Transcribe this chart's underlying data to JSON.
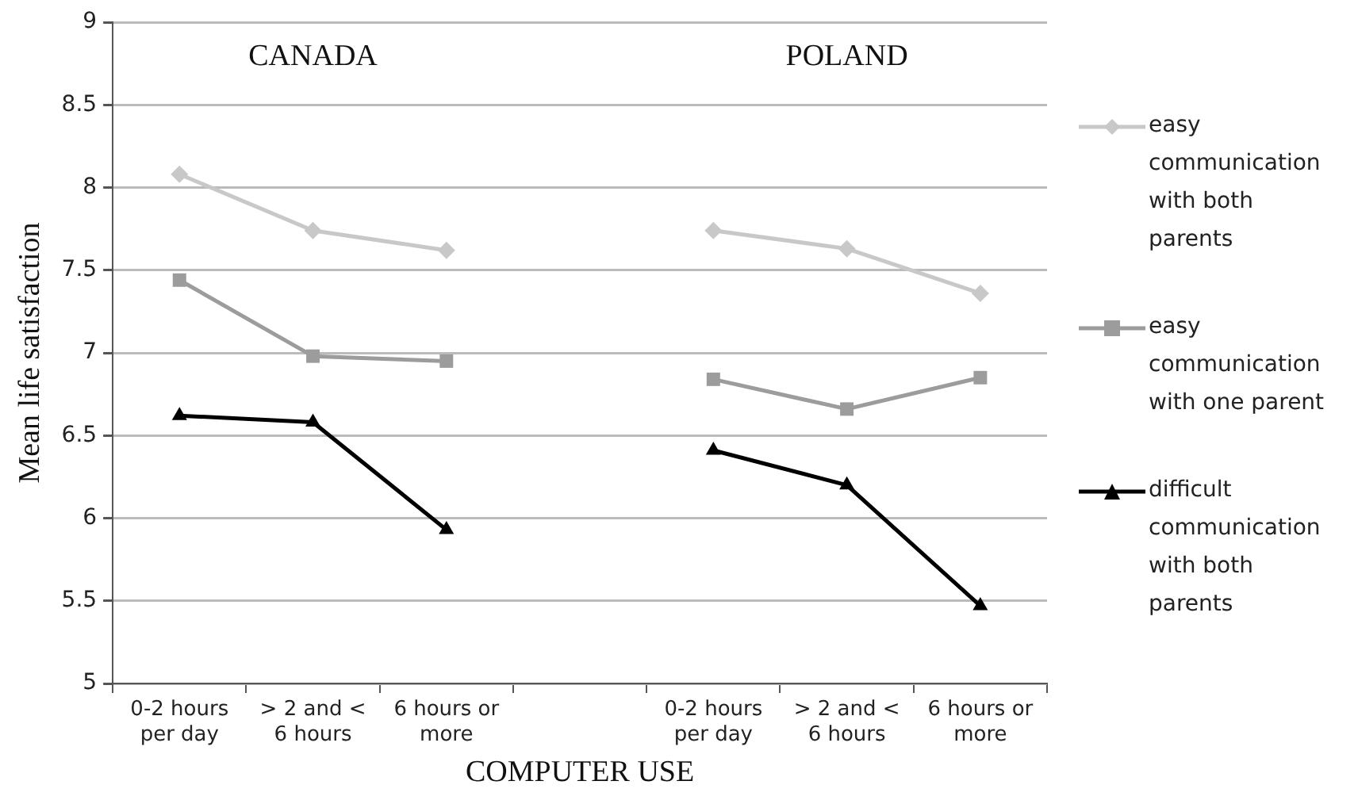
{
  "chart_data": {
    "type": "line",
    "xlabel": "COMPUTER USE",
    "ylabel": "Mean life satisfaction",
    "categories": [
      "0-2 hours per day",
      "> 2 and < 6 hours",
      "6 hours or more",
      null,
      "0-2 hours per day",
      "> 2 and < 6 hours",
      "6 hours or more"
    ],
    "annotations": [
      "CANADA",
      "POLAND"
    ],
    "ylim": [
      5,
      9
    ],
    "yticks": [
      5,
      5.5,
      6,
      6.5,
      7,
      7.5,
      8,
      8.5,
      9
    ],
    "grid": "y",
    "legend": "right",
    "series": [
      {
        "name": "easy communication with both parents",
        "color": "#c8c8c8",
        "marker": "diamond",
        "values": [
          8.08,
          7.74,
          7.62,
          null,
          7.74,
          7.63,
          7.36
        ]
      },
      {
        "name": "easy communication with one parent",
        "color": "#9c9c9c",
        "marker": "square",
        "values": [
          7.44,
          6.98,
          6.95,
          null,
          6.84,
          6.66,
          6.85
        ]
      },
      {
        "name": "difficult communication with both parents",
        "color": "#000000",
        "marker": "triangle",
        "values": [
          6.62,
          6.58,
          5.93,
          null,
          6.41,
          6.2,
          5.47
        ]
      }
    ]
  }
}
